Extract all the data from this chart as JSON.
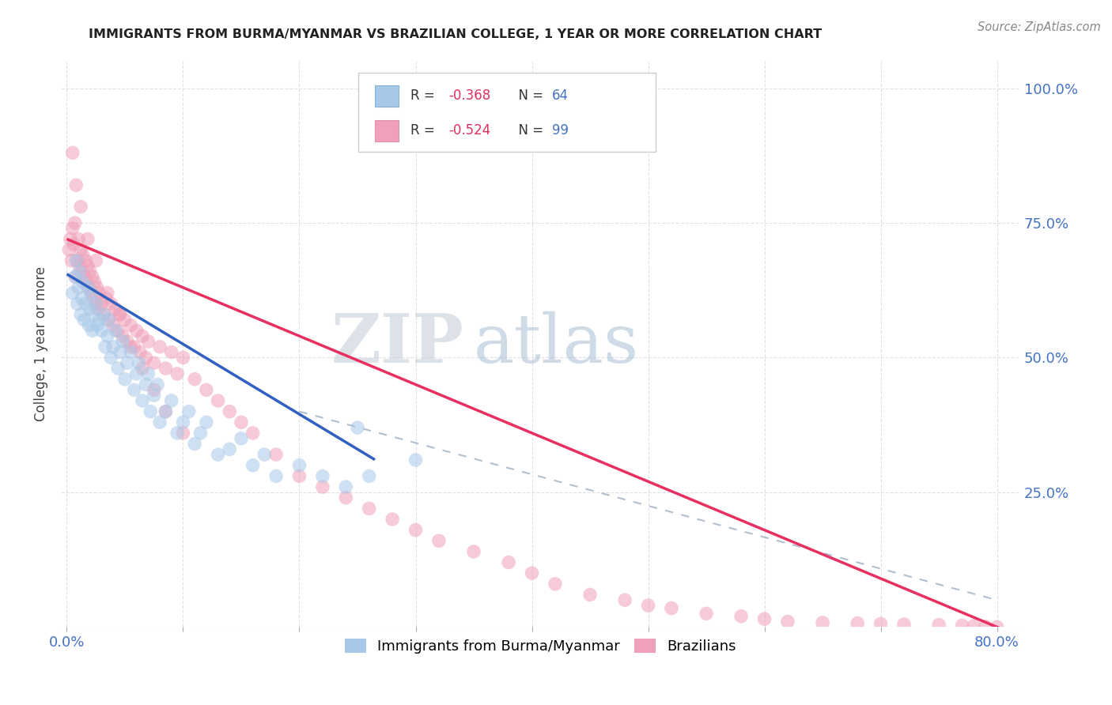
{
  "title": "IMMIGRANTS FROM BURMA/MYANMAR VS BRAZILIAN COLLEGE, 1 YEAR OR MORE CORRELATION CHART",
  "source_text": "Source: ZipAtlas.com",
  "ylabel": "College, 1 year or more",
  "xlim": [
    -0.005,
    0.82
  ],
  "ylim": [
    0.0,
    1.05
  ],
  "xtick_positions": [
    0.0,
    0.1,
    0.2,
    0.3,
    0.4,
    0.5,
    0.6,
    0.7,
    0.8
  ],
  "xticklabels": [
    "0.0%",
    "",
    "",
    "",
    "",
    "",
    "",
    "",
    "80.0%"
  ],
  "ytick_positions": [
    0.0,
    0.25,
    0.5,
    0.75,
    1.0
  ],
  "yticklabels_right": [
    "",
    "25.0%",
    "50.0%",
    "75.0%",
    "100.0%"
  ],
  "blue_color": "#a8c8e8",
  "pink_color": "#f0a0b8",
  "blue_line_color": "#3060c0",
  "pink_line_color": "#e83060",
  "dash_line_color": "#b0c0d0",
  "legend_label1": "Immigrants from Burma/Myanmar",
  "legend_label2": "Brazilians",
  "watermark_zip": "ZIP",
  "watermark_atlas": "atlas",
  "watermark_color_zip": "#c8d4e0",
  "watermark_color_atlas": "#b0c8e0",
  "title_color": "#222222",
  "axis_label_color": "#444444",
  "tick_color": "#4472c4",
  "source_color": "#888888",
  "grid_color": "#e0e0e8",
  "blue_scatter_x": [
    0.005,
    0.007,
    0.008,
    0.009,
    0.01,
    0.011,
    0.012,
    0.013,
    0.014,
    0.015,
    0.016,
    0.018,
    0.019,
    0.02,
    0.021,
    0.022,
    0.023,
    0.025,
    0.026,
    0.028,
    0.03,
    0.032,
    0.033,
    0.035,
    0.036,
    0.038,
    0.04,
    0.042,
    0.044,
    0.046,
    0.048,
    0.05,
    0.052,
    0.055,
    0.058,
    0.06,
    0.062,
    0.065,
    0.068,
    0.07,
    0.072,
    0.075,
    0.078,
    0.08,
    0.085,
    0.09,
    0.095,
    0.1,
    0.105,
    0.11,
    0.115,
    0.12,
    0.13,
    0.14,
    0.15,
    0.16,
    0.17,
    0.18,
    0.2,
    0.22,
    0.24,
    0.25,
    0.26,
    0.3
  ],
  "blue_scatter_y": [
    0.62,
    0.65,
    0.68,
    0.6,
    0.63,
    0.66,
    0.58,
    0.61,
    0.64,
    0.57,
    0.6,
    0.63,
    0.56,
    0.59,
    0.62,
    0.55,
    0.58,
    0.6,
    0.56,
    0.57,
    0.55,
    0.58,
    0.52,
    0.54,
    0.57,
    0.5,
    0.52,
    0.55,
    0.48,
    0.51,
    0.53,
    0.46,
    0.49,
    0.51,
    0.44,
    0.47,
    0.49,
    0.42,
    0.45,
    0.47,
    0.4,
    0.43,
    0.45,
    0.38,
    0.4,
    0.42,
    0.36,
    0.38,
    0.4,
    0.34,
    0.36,
    0.38,
    0.32,
    0.33,
    0.35,
    0.3,
    0.32,
    0.28,
    0.3,
    0.28,
    0.26,
    0.37,
    0.28,
    0.31
  ],
  "pink_scatter_x": [
    0.002,
    0.003,
    0.004,
    0.005,
    0.006,
    0.007,
    0.008,
    0.009,
    0.01,
    0.011,
    0.012,
    0.013,
    0.014,
    0.015,
    0.016,
    0.017,
    0.018,
    0.019,
    0.02,
    0.021,
    0.022,
    0.023,
    0.024,
    0.025,
    0.026,
    0.027,
    0.028,
    0.03,
    0.032,
    0.034,
    0.036,
    0.038,
    0.04,
    0.042,
    0.044,
    0.046,
    0.048,
    0.05,
    0.052,
    0.055,
    0.058,
    0.06,
    0.063,
    0.065,
    0.068,
    0.07,
    0.075,
    0.08,
    0.085,
    0.09,
    0.095,
    0.1,
    0.11,
    0.12,
    0.13,
    0.14,
    0.15,
    0.16,
    0.18,
    0.2,
    0.22,
    0.24,
    0.26,
    0.28,
    0.3,
    0.32,
    0.35,
    0.38,
    0.4,
    0.42,
    0.45,
    0.48,
    0.5,
    0.52,
    0.55,
    0.58,
    0.6,
    0.62,
    0.65,
    0.68,
    0.7,
    0.72,
    0.75,
    0.77,
    0.78,
    0.79,
    0.8,
    0.005,
    0.008,
    0.012,
    0.018,
    0.025,
    0.035,
    0.045,
    0.055,
    0.065,
    0.075,
    0.085,
    0.1
  ],
  "pink_scatter_y": [
    0.7,
    0.72,
    0.68,
    0.74,
    0.71,
    0.75,
    0.65,
    0.68,
    0.72,
    0.67,
    0.7,
    0.66,
    0.69,
    0.65,
    0.68,
    0.64,
    0.67,
    0.63,
    0.66,
    0.62,
    0.65,
    0.61,
    0.64,
    0.6,
    0.63,
    0.59,
    0.62,
    0.6,
    0.58,
    0.61,
    0.57,
    0.6,
    0.56,
    0.59,
    0.55,
    0.58,
    0.54,
    0.57,
    0.53,
    0.56,
    0.52,
    0.55,
    0.51,
    0.54,
    0.5,
    0.53,
    0.49,
    0.52,
    0.48,
    0.51,
    0.47,
    0.5,
    0.46,
    0.44,
    0.42,
    0.4,
    0.38,
    0.36,
    0.32,
    0.28,
    0.26,
    0.24,
    0.22,
    0.2,
    0.18,
    0.16,
    0.14,
    0.12,
    0.1,
    0.08,
    0.06,
    0.05,
    0.04,
    0.035,
    0.025,
    0.02,
    0.015,
    0.01,
    0.008,
    0.007,
    0.006,
    0.005,
    0.004,
    0.003,
    0.002,
    0.001,
    0.0,
    0.88,
    0.82,
    0.78,
    0.72,
    0.68,
    0.62,
    0.58,
    0.52,
    0.48,
    0.44,
    0.4,
    0.36
  ],
  "blue_line_x": [
    0.0,
    0.265
  ],
  "blue_line_y_intercept": 0.655,
  "blue_line_slope": -1.3,
  "pink_line_x": [
    0.0,
    0.805
  ],
  "pink_line_y_intercept": 0.72,
  "pink_line_slope": -0.9,
  "dash_line_x": [
    0.2,
    0.8
  ],
  "dash_line_y": [
    0.4,
    0.05
  ]
}
